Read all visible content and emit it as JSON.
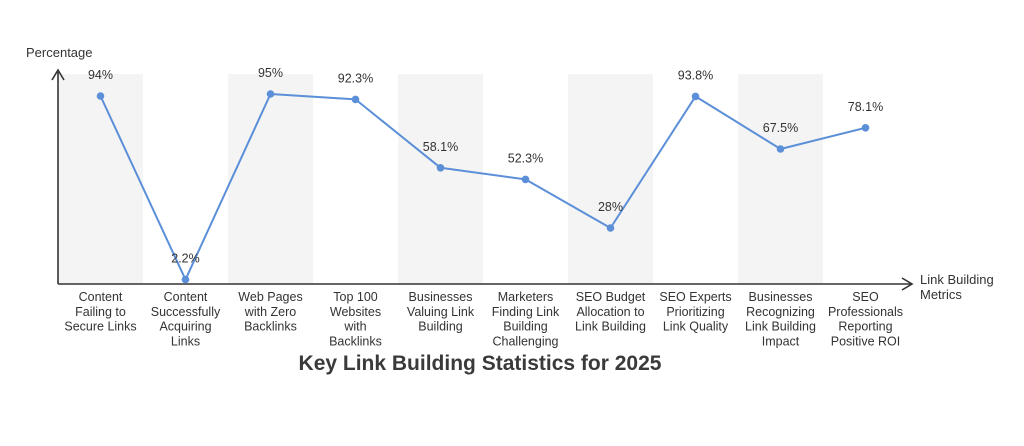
{
  "chart_data": {
    "type": "line",
    "title": "Key Link Building Statistics for 2025",
    "xlabel": "Link Building Metrics",
    "ylabel": "Percentage",
    "ylim": [
      0,
      100
    ],
    "grid": false,
    "categories": [
      [
        "Content",
        "Failing to",
        "Secure Links"
      ],
      [
        "Content",
        "Successfully",
        "Acquiring",
        "Links"
      ],
      [
        "Web Pages",
        "with Zero",
        "Backlinks"
      ],
      [
        "Top 100",
        "Websites",
        "with",
        "Backlinks"
      ],
      [
        "Businesses",
        "Valuing Link",
        "Building"
      ],
      [
        "Marketers",
        "Finding Link",
        "Building",
        "Challenging"
      ],
      [
        "SEO Budget",
        "Allocation to",
        "Link Building"
      ],
      [
        "SEO Experts",
        "Prioritizing",
        "Link Quality"
      ],
      [
        "Businesses",
        "Recognizing",
        "Link Building",
        "Impact"
      ],
      [
        "SEO",
        "Professionals",
        "Reporting",
        "Positive ROI"
      ]
    ],
    "values": [
      94,
      2.2,
      95,
      92.3,
      58.1,
      52.3,
      28,
      93.8,
      67.5,
      78.1
    ],
    "value_labels": [
      "94%",
      "2.2%",
      "95%",
      "92.3%",
      "58.1%",
      "52.3%",
      "28%",
      "93.8%",
      "67.5%",
      "78.1%"
    ],
    "colors": {
      "line": "#5b8fd8",
      "band": "#f4f4f4",
      "axis": "#333333"
    }
  }
}
